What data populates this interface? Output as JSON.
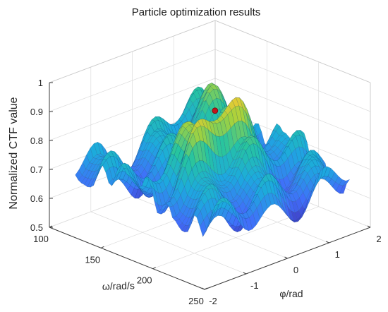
{
  "chart_data": {
    "type": "surface3d",
    "title": "Particle optimization results",
    "xlabel": "ω/rad/s",
    "ylabel": "φ/rad",
    "zlabel": "Normalized CTF value",
    "xlim": [
      100,
      250
    ],
    "ylim": [
      -2,
      2
    ],
    "zlim": [
      0.5,
      1
    ],
    "x_ticks": [
      "100",
      "150",
      "200",
      "250"
    ],
    "y_ticks": [
      "-2",
      "-1",
      "0",
      "1",
      "2"
    ],
    "z_ticks": [
      "0.5",
      "0.6",
      "0.7",
      "0.8",
      "0.9",
      "1"
    ],
    "grid": true,
    "colormap": "parula",
    "optimum_point": {
      "omega": 180,
      "phi": 0,
      "value": 0.91,
      "color": "#c0141c"
    }
  }
}
